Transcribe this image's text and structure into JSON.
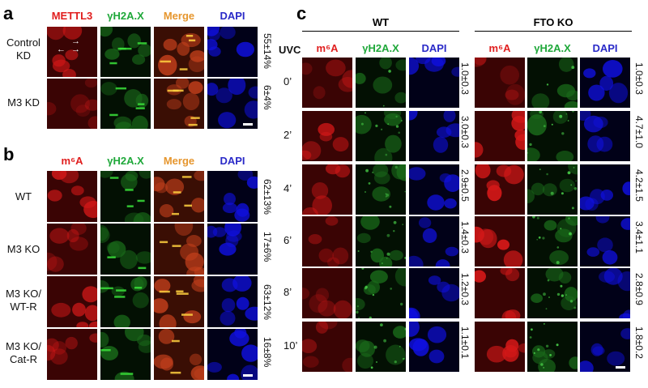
{
  "panels": {
    "a": {
      "letter": "a",
      "headers": [
        {
          "text": "METTL3",
          "color": "#e01e1e"
        },
        {
          "text": "γH2A.X",
          "color": "#1fa83a"
        },
        {
          "text": "Merge",
          "color": "#e6962e"
        },
        {
          "text": "DAPI",
          "color": "#2a2ac8"
        }
      ],
      "rows": [
        {
          "label": "Control\nKD",
          "value": "55±14%"
        },
        {
          "label": "M3 KD",
          "value": "6±4%"
        }
      ]
    },
    "b": {
      "letter": "b",
      "headers": [
        {
          "text": "m⁶A",
          "color": "#e01e1e"
        },
        {
          "text": "γH2A.X",
          "color": "#1fa83a"
        },
        {
          "text": "Merge",
          "color": "#e6962e"
        },
        {
          "text": "DAPI",
          "color": "#2a2ac8"
        }
      ],
      "rows": [
        {
          "label": "WT",
          "value": "62±13%"
        },
        {
          "label": "M3 KO",
          "value": "17±6%"
        },
        {
          "label": "M3 KO/\nWT-R",
          "value": "63±12%"
        },
        {
          "label": "M3 KO/\nCat-R",
          "value": "16±8%"
        }
      ]
    },
    "c": {
      "letter": "c",
      "uvc_label": "UVC",
      "groups": [
        {
          "title": "WT",
          "headers": [
            {
              "text": "m⁶A",
              "color": "#e01e1e"
            },
            {
              "text": "γH2A.X",
              "color": "#1fa83a"
            },
            {
              "text": "DAPI",
              "color": "#2a2ac8"
            }
          ]
        },
        {
          "title": "FTO KO",
          "headers": [
            {
              "text": "m⁶A",
              "color": "#e01e1e"
            },
            {
              "text": "γH2A.X",
              "color": "#1fa83a"
            },
            {
              "text": "DAPI",
              "color": "#2a2ac8"
            }
          ]
        }
      ],
      "rows": [
        {
          "time": "0’",
          "wt": "1.0±0.3",
          "fto": "1.0±0.3"
        },
        {
          "time": "2’",
          "wt": "3.0±0.3",
          "fto": "4.7±1.0"
        },
        {
          "time": "4’",
          "wt": "2.9±0.5",
          "fto": "4.2±1.5"
        },
        {
          "time": "6’",
          "wt": "1.4±0.3",
          "fto": "3.4±1.1"
        },
        {
          "time": "8’",
          "wt": "1.2±0.3",
          "fto": "2.8±0.9"
        },
        {
          "time": "10’",
          "wt": "1.1±0.1",
          "fto": "1.8±0.2"
        }
      ]
    }
  },
  "colors": {
    "red_channel": "#b01010",
    "green_channel": "#0c2a0c",
    "blue_channel": "#0a0a8a",
    "merge_channel": "#8a3a12"
  }
}
